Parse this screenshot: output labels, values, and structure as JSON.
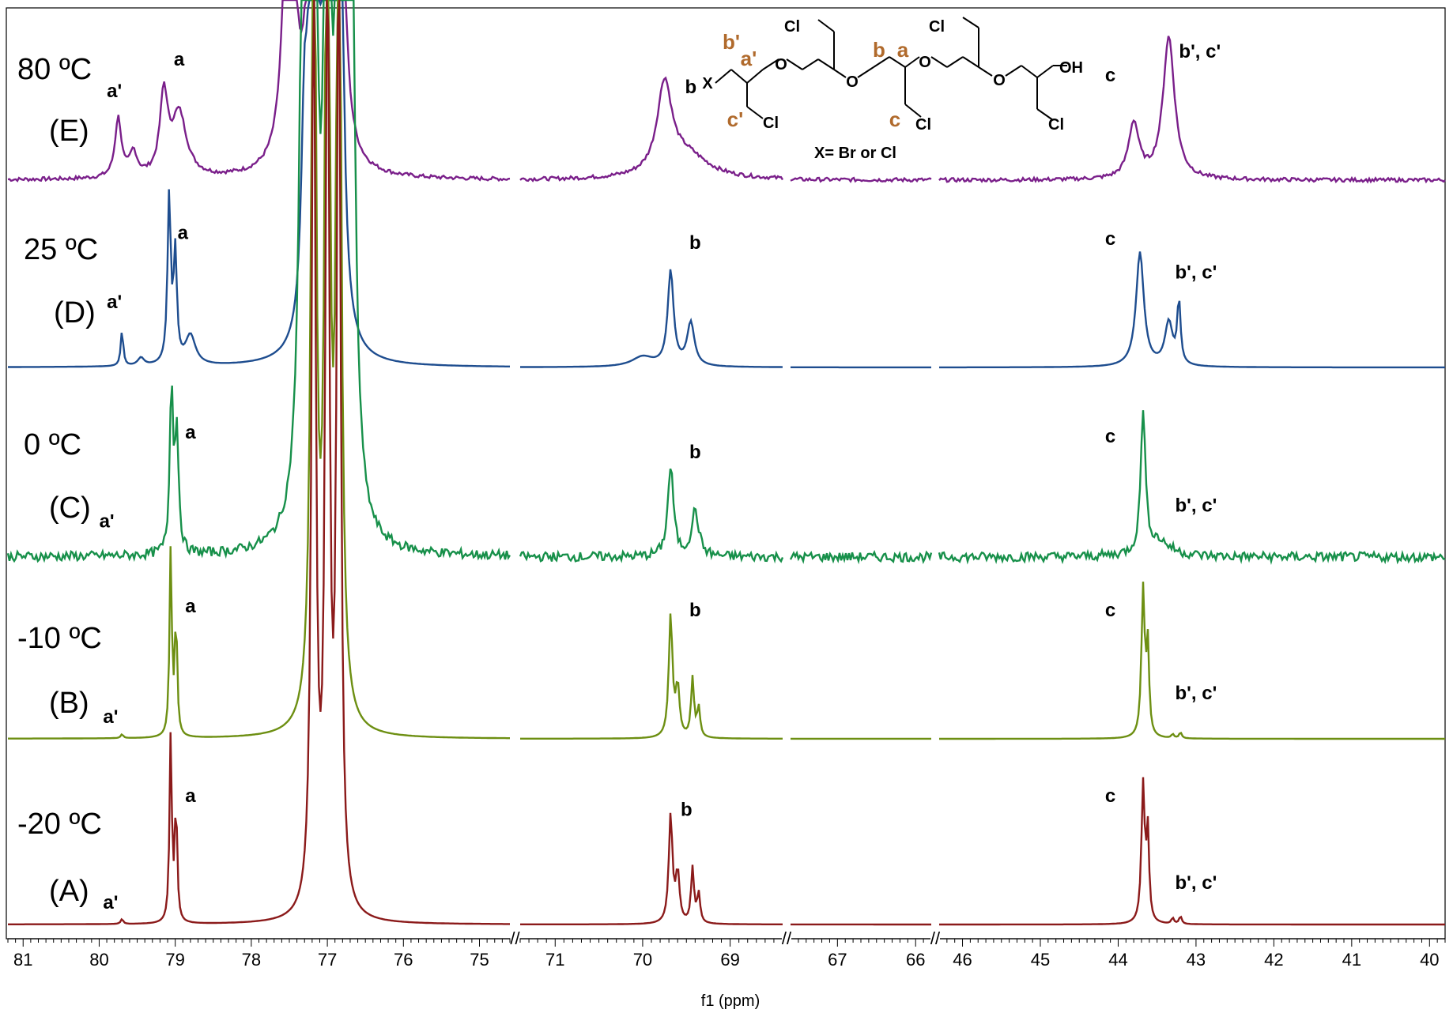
{
  "chart_data": {
    "type": "line",
    "title": "",
    "xlabel": "f1 (ppm)",
    "ylabel": "",
    "x_reversed": true,
    "axis_segments": [
      {
        "range": [
          81.2,
          74.6
        ],
        "ticks": [
          81,
          80,
          79,
          78,
          77,
          76,
          75
        ]
      },
      {
        "range": [
          71.4,
          68.4
        ],
        "ticks": [
          71,
          70,
          69
        ]
      },
      {
        "range": [
          67.6,
          65.8
        ],
        "ticks": [
          67,
          66
        ]
      },
      {
        "range": [
          46.3,
          39.8
        ],
        "ticks": [
          46,
          45,
          44,
          43,
          42,
          41,
          40
        ]
      }
    ],
    "axis_breaks": [
      "//",
      "//",
      "//"
    ],
    "series": [
      {
        "id": "E",
        "temperature": "80 ºC",
        "panel": "(E)",
        "color": "#7a1f8a",
        "noise": 0.012,
        "peaks": [
          {
            "x": 79.75,
            "h": 0.3,
            "w": 0.05
          },
          {
            "x": 79.55,
            "h": 0.12,
            "w": 0.06
          },
          {
            "x": 79.15,
            "h": 0.4,
            "w": 0.06
          },
          {
            "x": 78.95,
            "h": 0.32,
            "w": 0.12
          },
          {
            "x": 77.5,
            "h": 2.2,
            "w": 0.07
          },
          {
            "x": 77.18,
            "h": 5.0,
            "w": 0.04
          },
          {
            "x": 77.0,
            "h": 5.0,
            "w": 0.04
          },
          {
            "x": 76.85,
            "h": 5.0,
            "w": 0.04
          },
          {
            "x": 69.75,
            "h": 0.45,
            "w": 0.1
          },
          {
            "x": 69.5,
            "h": 0.12,
            "w": 0.3
          },
          {
            "x": 43.8,
            "h": 0.28,
            "w": 0.08
          },
          {
            "x": 43.35,
            "h": 0.72,
            "w": 0.09
          }
        ],
        "labels": [
          {
            "text": "a'",
            "x": 79.8,
            "y": 0.42
          },
          {
            "text": "a",
            "x": 78.95,
            "y": 0.58
          },
          {
            "text": "b",
            "x": 69.45,
            "y": 0.44
          },
          {
            "text": "c",
            "x": 44.1,
            "y": 0.5
          },
          {
            "text": "b', c'",
            "x": 42.95,
            "y": 0.62
          }
        ]
      },
      {
        "id": "D",
        "temperature": "25 ºC",
        "panel": "(D)",
        "color": "#1e4d8f",
        "noise": 0.0,
        "peaks": [
          {
            "x": 79.7,
            "h": 0.18,
            "w": 0.02
          },
          {
            "x": 79.45,
            "h": 0.04,
            "w": 0.05
          },
          {
            "x": 79.08,
            "h": 0.85,
            "w": 0.025
          },
          {
            "x": 79.0,
            "h": 0.55,
            "w": 0.025
          },
          {
            "x": 78.8,
            "h": 0.15,
            "w": 0.08
          },
          {
            "x": 77.3,
            "h": 1.0,
            "w": 0.05
          },
          {
            "x": 77.18,
            "h": 5.0,
            "w": 0.04
          },
          {
            "x": 77.0,
            "h": 5.0,
            "w": 0.04
          },
          {
            "x": 76.85,
            "h": 5.0,
            "w": 0.04
          },
          {
            "x": 69.68,
            "h": 0.48,
            "w": 0.04
          },
          {
            "x": 69.45,
            "h": 0.22,
            "w": 0.05
          },
          {
            "x": 70.0,
            "h": 0.05,
            "w": 0.15
          },
          {
            "x": 43.72,
            "h": 0.58,
            "w": 0.06
          },
          {
            "x": 43.35,
            "h": 0.22,
            "w": 0.06
          },
          {
            "x": 43.22,
            "h": 0.32,
            "w": 0.025
          }
        ],
        "labels": [
          {
            "text": "a'",
            "x": 79.8,
            "y": 0.3
          },
          {
            "text": "a",
            "x": 78.9,
            "y": 0.65
          },
          {
            "text": "b",
            "x": 69.4,
            "y": 0.6
          },
          {
            "text": "c",
            "x": 44.1,
            "y": 0.62
          },
          {
            "text": "b', c'",
            "x": 43.0,
            "y": 0.45
          }
        ]
      },
      {
        "id": "C",
        "temperature": "0 ºC",
        "panel": "(C)",
        "color": "#17904a",
        "noise": 0.03,
        "peaks": [
          {
            "x": 79.05,
            "h": 0.85,
            "w": 0.025
          },
          {
            "x": 78.98,
            "h": 0.6,
            "w": 0.03
          },
          {
            "x": 77.3,
            "h": 5.0,
            "w": 0.05
          },
          {
            "x": 77.18,
            "h": 5.0,
            "w": 0.04
          },
          {
            "x": 77.0,
            "h": 5.0,
            "w": 0.04
          },
          {
            "x": 76.85,
            "h": 5.0,
            "w": 0.04
          },
          {
            "x": 76.7,
            "h": 5.0,
            "w": 0.05
          },
          {
            "x": 69.68,
            "h": 0.45,
            "w": 0.04
          },
          {
            "x": 69.4,
            "h": 0.23,
            "w": 0.05
          },
          {
            "x": 43.68,
            "h": 0.72,
            "w": 0.035
          },
          {
            "x": 43.5,
            "h": 0.08,
            "w": 0.2
          }
        ],
        "labels": [
          {
            "text": "a'",
            "x": 79.9,
            "y": 0.15
          },
          {
            "text": "a",
            "x": 78.8,
            "y": 0.6
          },
          {
            "text": "b",
            "x": 69.4,
            "y": 0.5
          },
          {
            "text": "c",
            "x": 44.1,
            "y": 0.58
          },
          {
            "text": "b', c'",
            "x": 43.0,
            "y": 0.23
          }
        ]
      },
      {
        "id": "B",
        "temperature": "-10 ºC",
        "panel": "(B)",
        "color": "#6d8f12",
        "noise": 0.0,
        "peaks": [
          {
            "x": 79.7,
            "h": 0.02,
            "w": 0.02
          },
          {
            "x": 79.06,
            "h": 0.95,
            "w": 0.018
          },
          {
            "x": 78.99,
            "h": 0.6,
            "w": 0.018
          },
          {
            "x": 77.18,
            "h": 5.0,
            "w": 0.035
          },
          {
            "x": 77.0,
            "h": 5.0,
            "w": 0.035
          },
          {
            "x": 76.85,
            "h": 5.0,
            "w": 0.035
          },
          {
            "x": 69.68,
            "h": 0.62,
            "w": 0.025
          },
          {
            "x": 69.6,
            "h": 0.25,
            "w": 0.025
          },
          {
            "x": 69.43,
            "h": 0.3,
            "w": 0.02
          },
          {
            "x": 69.36,
            "h": 0.15,
            "w": 0.02
          },
          {
            "x": 43.68,
            "h": 0.75,
            "w": 0.025
          },
          {
            "x": 43.62,
            "h": 0.45,
            "w": 0.02
          },
          {
            "x": 43.3,
            "h": 0.02,
            "w": 0.02
          },
          {
            "x": 43.2,
            "h": 0.03,
            "w": 0.02
          }
        ],
        "labels": [
          {
            "text": "a'",
            "x": 79.85,
            "y": 0.08
          },
          {
            "text": "a",
            "x": 78.8,
            "y": 0.64
          },
          {
            "text": "b",
            "x": 69.4,
            "y": 0.62
          },
          {
            "text": "c",
            "x": 44.1,
            "y": 0.62
          },
          {
            "text": "b', c'",
            "x": 43.0,
            "y": 0.2
          }
        ]
      },
      {
        "id": "A",
        "temperature": "-20 ºC",
        "panel": "(A)",
        "color": "#8b1a1a",
        "noise": 0.0,
        "peaks": [
          {
            "x": 79.7,
            "h": 0.025,
            "w": 0.02
          },
          {
            "x": 79.06,
            "h": 0.95,
            "w": 0.018
          },
          {
            "x": 78.99,
            "h": 0.6,
            "w": 0.018
          },
          {
            "x": 77.18,
            "h": 5.0,
            "w": 0.03
          },
          {
            "x": 77.0,
            "h": 5.0,
            "w": 0.03
          },
          {
            "x": 76.85,
            "h": 5.0,
            "w": 0.03
          },
          {
            "x": 69.68,
            "h": 0.55,
            "w": 0.025
          },
          {
            "x": 69.6,
            "h": 0.25,
            "w": 0.025
          },
          {
            "x": 69.43,
            "h": 0.28,
            "w": 0.02
          },
          {
            "x": 69.36,
            "h": 0.15,
            "w": 0.02
          },
          {
            "x": 43.68,
            "h": 0.7,
            "w": 0.025
          },
          {
            "x": 43.62,
            "h": 0.45,
            "w": 0.02
          },
          {
            "x": 43.3,
            "h": 0.03,
            "w": 0.02
          },
          {
            "x": 43.2,
            "h": 0.04,
            "w": 0.02
          }
        ],
        "labels": [
          {
            "text": "a'",
            "x": 79.85,
            "y": 0.08
          },
          {
            "text": "a",
            "x": 78.8,
            "y": 0.62
          },
          {
            "text": "b",
            "x": 69.5,
            "y": 0.55
          },
          {
            "text": "c",
            "x": 44.1,
            "y": 0.62
          },
          {
            "text": "b', c'",
            "x": 43.0,
            "y": 0.18
          }
        ]
      }
    ],
    "structure": {
      "atom_labels": [
        "X",
        "O",
        "O",
        "O",
        "O",
        "OH",
        "Cl",
        "Cl",
        "Cl",
        "Cl",
        "Cl"
      ],
      "assignments": [
        "b'",
        "a'",
        "c'",
        "b",
        "a",
        "c"
      ],
      "caption": "X= Br or Cl"
    }
  }
}
